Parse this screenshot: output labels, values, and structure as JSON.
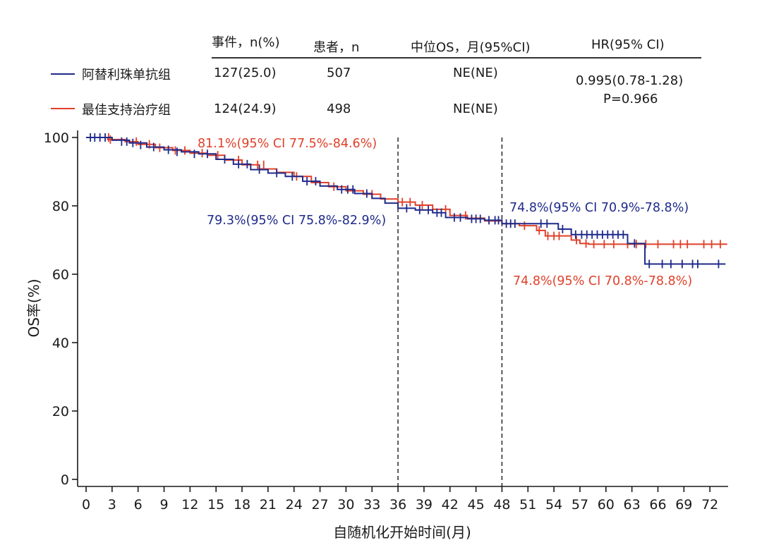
{
  "colors": {
    "blue": "#1f2a8a",
    "red": "#e0402a",
    "axis": "#1a1a1a",
    "rule": "#333333"
  },
  "table": {
    "headers": {
      "events": "事件，n(%)",
      "patients": "患者，n",
      "median_os": "中位OS，月(95%CI)",
      "hr": "HR(95% CI)"
    },
    "rows": [
      {
        "group": "阿替利珠单抗组",
        "events": "127(25.0)",
        "patients": "507",
        "median_os": "NE(NE)"
      },
      {
        "group": "最佳支持治疗组",
        "events": "124(24.9)",
        "patients": "498",
        "median_os": "NE(NE)"
      }
    ],
    "hr_value": "0.995(0.78-1.28)",
    "p_value": "P=0.966"
  },
  "chart_data": {
    "type": "line",
    "xlabel": "自随机化开始时间(月)",
    "ylabel": "OS率(%)",
    "xlim": [
      0,
      74
    ],
    "ylim": [
      0,
      100
    ],
    "xticks": [
      0,
      3,
      6,
      9,
      12,
      15,
      18,
      21,
      24,
      27,
      30,
      33,
      36,
      39,
      42,
      45,
      48,
      51,
      54,
      57,
      60,
      63,
      66,
      69,
      72
    ],
    "yticks": [
      0,
      20,
      40,
      60,
      80,
      100
    ],
    "reference_lines_x": [
      36,
      48
    ],
    "annotations": [
      {
        "text": "81.1%(95% CI 77.5%-84.6%)",
        "color": "red"
      },
      {
        "text": "79.3%(95% CI 75.8%-82.9%)",
        "color": "blue"
      },
      {
        "text": "74.8%(95% CI 70.9%-78.8%)",
        "color": "blue"
      },
      {
        "text": "74.8%(95% CI 70.8%-78.8%)",
        "color": "red"
      }
    ],
    "series": [
      {
        "name": "阿替利珠单抗组",
        "color": "blue",
        "steps": [
          [
            0,
            100
          ],
          [
            3,
            99.2
          ],
          [
            5,
            98.4
          ],
          [
            7,
            97.2
          ],
          [
            9,
            96.4
          ],
          [
            11,
            95.8
          ],
          [
            13,
            95.2
          ],
          [
            15,
            93.6
          ],
          [
            17,
            92.2
          ],
          [
            19,
            90.6
          ],
          [
            21,
            89.6
          ],
          [
            23,
            88.6
          ],
          [
            25,
            87.2
          ],
          [
            27,
            85.8
          ],
          [
            29,
            84.8
          ],
          [
            31,
            83.6
          ],
          [
            33,
            82.2
          ],
          [
            34.5,
            80.8
          ],
          [
            36,
            79.3
          ],
          [
            38,
            78.8
          ],
          [
            40,
            78.0
          ],
          [
            41.5,
            76.6
          ],
          [
            44,
            76.2
          ],
          [
            46,
            75.8
          ],
          [
            48,
            74.8
          ],
          [
            53,
            74.8
          ],
          [
            54.5,
            73.2
          ],
          [
            56,
            71.6
          ],
          [
            62.5,
            69.0
          ],
          [
            64.5,
            63.0
          ],
          [
            73.8,
            63.0
          ]
        ],
        "censors": [
          [
            0.5,
            100
          ],
          [
            1.0,
            100
          ],
          [
            1.6,
            100
          ],
          [
            2.2,
            100
          ],
          [
            4.1,
            98.8
          ],
          [
            4.7,
            98.8
          ],
          [
            5.4,
            98.4
          ],
          [
            6.3,
            97.8
          ],
          [
            7.8,
            97.2
          ],
          [
            9.5,
            96.4
          ],
          [
            10.5,
            95.8
          ],
          [
            12.5,
            95.2
          ],
          [
            14.0,
            95.2
          ],
          [
            16.0,
            93.6
          ],
          [
            17.6,
            92.2
          ],
          [
            18.6,
            92.2
          ],
          [
            20.0,
            90.6
          ],
          [
            22.0,
            89.6
          ],
          [
            23.8,
            88.6
          ],
          [
            25.5,
            87.2
          ],
          [
            26.5,
            87.2
          ],
          [
            29.5,
            84.8
          ],
          [
            30.2,
            84.8
          ],
          [
            30.8,
            84.8
          ],
          [
            32.4,
            83.6
          ],
          [
            37.0,
            79.3
          ],
          [
            38.5,
            78.8
          ],
          [
            39.5,
            78.8
          ],
          [
            40.5,
            78.0
          ],
          [
            41.0,
            78.0
          ],
          [
            42.5,
            76.6
          ],
          [
            43.2,
            76.6
          ],
          [
            44.5,
            76.2
          ],
          [
            45.0,
            76.2
          ],
          [
            45.5,
            76.2
          ],
          [
            46.5,
            75.8
          ],
          [
            47.2,
            75.8
          ],
          [
            47.6,
            75.8
          ],
          [
            48.5,
            74.8
          ],
          [
            49.0,
            74.8
          ],
          [
            49.5,
            74.8
          ],
          [
            52.5,
            74.8
          ],
          [
            53.2,
            74.8
          ],
          [
            55.0,
            73.2
          ],
          [
            56.5,
            71.6
          ],
          [
            57.2,
            71.6
          ],
          [
            57.8,
            71.6
          ],
          [
            58.4,
            71.6
          ],
          [
            59.0,
            71.6
          ],
          [
            59.6,
            71.6
          ],
          [
            60.2,
            71.6
          ],
          [
            60.8,
            71.6
          ],
          [
            61.4,
            71.6
          ],
          [
            62.0,
            71.6
          ],
          [
            63.3,
            69.0
          ],
          [
            65.0,
            63.0
          ],
          [
            66.5,
            63.0
          ],
          [
            67.5,
            63.0
          ],
          [
            68.8,
            63.0
          ],
          [
            70.0,
            63.0
          ],
          [
            70.6,
            63.0
          ],
          [
            73.0,
            63.0
          ]
        ]
      },
      {
        "name": "最佳支持治疗组",
        "color": "red",
        "steps": [
          [
            0,
            100
          ],
          [
            2.5,
            99.4
          ],
          [
            4.5,
            98.8
          ],
          [
            6,
            98.0
          ],
          [
            8,
            97.0
          ],
          [
            10,
            96.2
          ],
          [
            12,
            95.4
          ],
          [
            14,
            94.8
          ],
          [
            16,
            93.4
          ],
          [
            18,
            92.0
          ],
          [
            20,
            90.8
          ],
          [
            22,
            89.8
          ],
          [
            24,
            88.6
          ],
          [
            26,
            86.8
          ],
          [
            28,
            85.6
          ],
          [
            30,
            84.4
          ],
          [
            32,
            83.4
          ],
          [
            34,
            82.0
          ],
          [
            36,
            81.1
          ],
          [
            38,
            80.2
          ],
          [
            40,
            79.0
          ],
          [
            42,
            77.2
          ],
          [
            44,
            76.4
          ],
          [
            46,
            75.6
          ],
          [
            48,
            74.8
          ],
          [
            50,
            74.2
          ],
          [
            52,
            72.8
          ],
          [
            53,
            71.2
          ],
          [
            56,
            70.0
          ],
          [
            57,
            69.0
          ],
          [
            58,
            68.8
          ],
          [
            74.0,
            68.8
          ]
        ],
        "censors": [
          [
            2.6,
            100
          ],
          [
            2.8,
            99.4
          ],
          [
            5.8,
            98.8
          ],
          [
            7.3,
            98.0
          ],
          [
            8.5,
            97.0
          ],
          [
            10.3,
            96.2
          ],
          [
            11.4,
            96.2
          ],
          [
            13.4,
            95.4
          ],
          [
            15.2,
            94.8
          ],
          [
            17.6,
            93.4
          ],
          [
            19.8,
            92.0
          ],
          [
            20.5,
            92.0
          ],
          [
            24.3,
            88.6
          ],
          [
            28.6,
            85.6
          ],
          [
            33.0,
            83.4
          ],
          [
            36.5,
            81.1
          ],
          [
            37.4,
            81.1
          ],
          [
            38.8,
            80.2
          ],
          [
            41.5,
            79.0
          ],
          [
            43.8,
            77.2
          ],
          [
            50.6,
            74.2
          ],
          [
            52.3,
            72.8
          ],
          [
            53.3,
            71.2
          ],
          [
            54.0,
            71.2
          ],
          [
            54.6,
            71.2
          ],
          [
            56.6,
            70.0
          ],
          [
            57.7,
            69.0
          ],
          [
            58.6,
            68.8
          ],
          [
            59.8,
            68.8
          ],
          [
            60.9,
            68.8
          ],
          [
            62.5,
            68.8
          ],
          [
            63.5,
            68.8
          ],
          [
            64.6,
            68.8
          ],
          [
            66.0,
            68.8
          ],
          [
            67.8,
            68.8
          ],
          [
            68.6,
            68.8
          ],
          [
            69.4,
            68.8
          ],
          [
            71.3,
            68.8
          ],
          [
            72.2,
            68.8
          ],
          [
            73.2,
            68.8
          ]
        ]
      }
    ]
  }
}
